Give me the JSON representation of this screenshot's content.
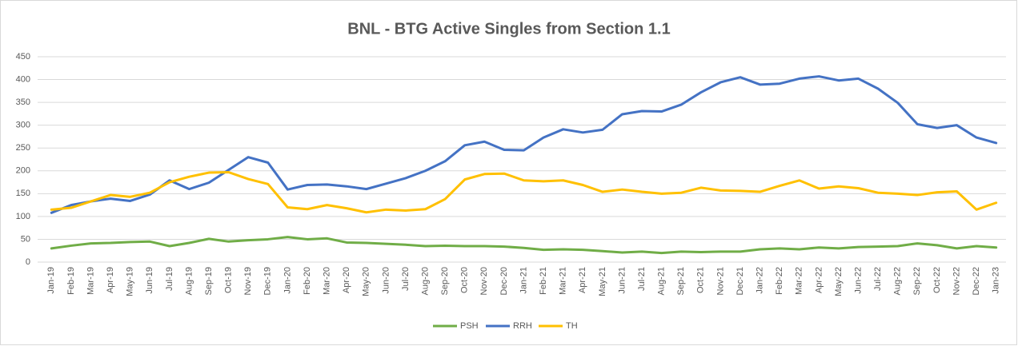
{
  "chart_data": {
    "type": "line",
    "title": "BNL - BTG Active Singles from Section 1.1",
    "categories": [
      "Jan-19",
      "Feb-19",
      "Mar-19",
      "Apr-19",
      "May-19",
      "Jun-19",
      "Jul-19",
      "Aug-19",
      "Sep-19",
      "Oct-19",
      "Nov-19",
      "Dec-19",
      "Jan-20",
      "Feb-20",
      "Mar-20",
      "Apr-20",
      "May-20",
      "Jun-20",
      "Jul-20",
      "Aug-20",
      "Sep-20",
      "Oct-20",
      "Nov-20",
      "Dec-20",
      "Jan-21",
      "Feb-21",
      "Mar-21",
      "Apr-21",
      "May-21",
      "Jun-21",
      "Jul-21",
      "Aug-21",
      "Sep-21",
      "Oct-21",
      "Nov-21",
      "Dec-21",
      "Jan-22",
      "Feb-22",
      "Mar-22",
      "Apr-22",
      "May-22",
      "Jun-22",
      "Jul-22",
      "Aug-22",
      "Sep-22",
      "Oct-22",
      "Nov-22",
      "Dec-22",
      "Jan-23"
    ],
    "series": [
      {
        "name": "PSH",
        "color": "#70ad47",
        "values": [
          30,
          36,
          41,
          42,
          44,
          45,
          35,
          42,
          51,
          45,
          48,
          50,
          55,
          50,
          52,
          43,
          42,
          40,
          38,
          35,
          36,
          35,
          35,
          34,
          31,
          27,
          28,
          27,
          24,
          21,
          23,
          20,
          23,
          22,
          23,
          23,
          28,
          30,
          28,
          32,
          30,
          33,
          34,
          35,
          41,
          37,
          30,
          35,
          32
        ]
      },
      {
        "name": "RRH",
        "color": "#4472c4",
        "values": [
          108,
          125,
          133,
          139,
          134,
          148,
          179,
          160,
          174,
          202,
          230,
          218,
          159,
          169,
          170,
          166,
          160,
          172,
          184,
          200,
          221,
          256,
          264,
          246,
          245,
          273,
          291,
          284,
          290,
          324,
          331,
          330,
          345,
          372,
          394,
          405,
          389,
          391,
          402,
          407,
          398,
          402,
          380,
          349,
          302,
          294,
          300,
          273,
          261
        ]
      },
      {
        "name": "TH",
        "color": "#ffc000",
        "values": [
          115,
          119,
          133,
          147,
          143,
          152,
          175,
          187,
          196,
          197,
          182,
          171,
          120,
          116,
          125,
          118,
          109,
          115,
          113,
          116,
          138,
          181,
          193,
          194,
          179,
          177,
          179,
          169,
          154,
          159,
          154,
          150,
          152,
          163,
          157,
          156,
          154,
          167,
          179,
          161,
          166,
          162,
          152,
          150,
          147,
          153,
          155,
          115,
          130
        ]
      }
    ],
    "ylim": [
      0,
      450
    ],
    "yticks": [
      0,
      50,
      100,
      150,
      200,
      250,
      300,
      350,
      400,
      450
    ],
    "grid": true,
    "legend": "bottom"
  }
}
